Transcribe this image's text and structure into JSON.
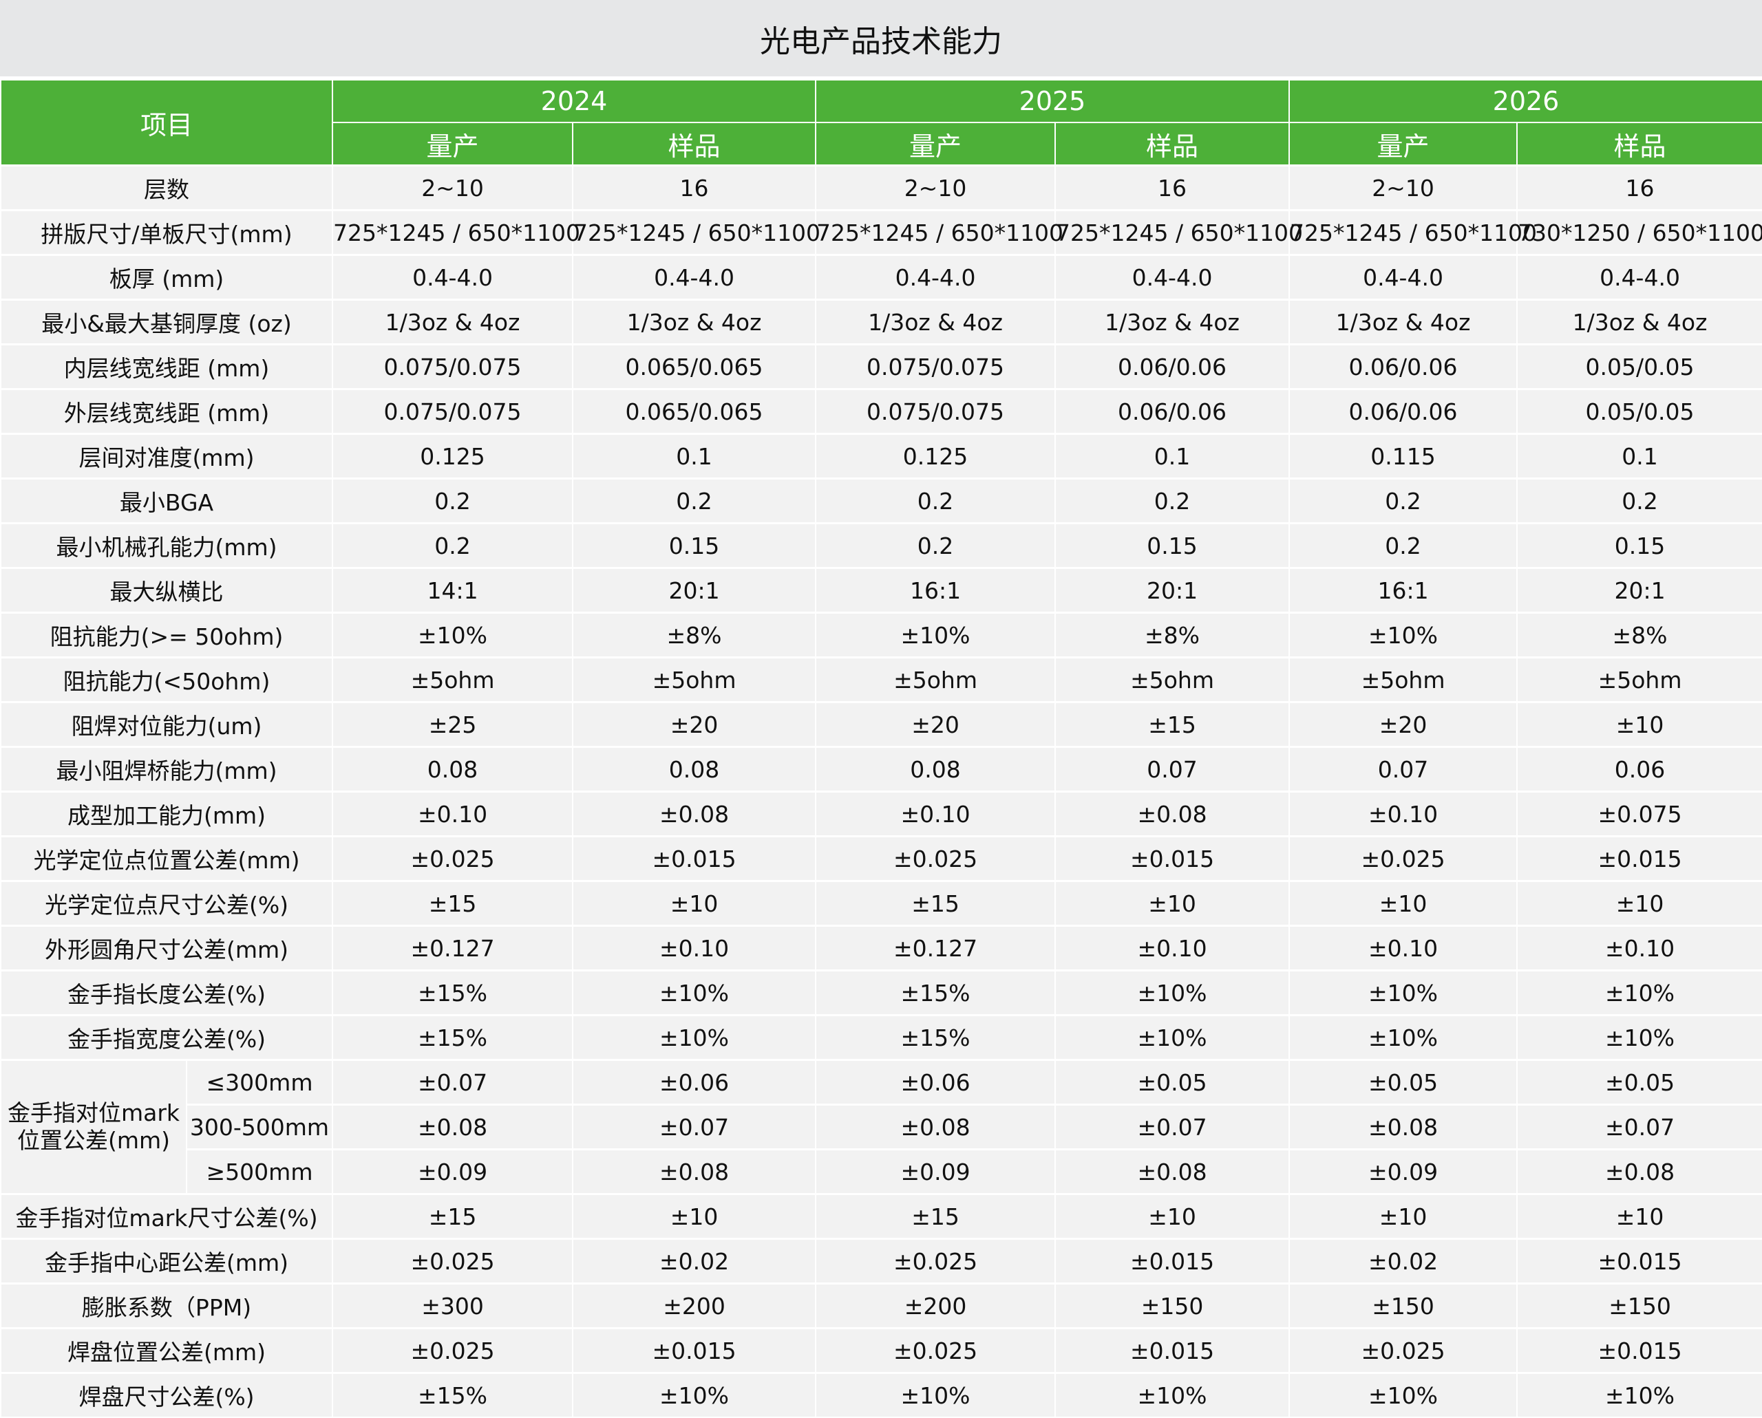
{
  "title": "光电产品技术能力",
  "header": {
    "item": "项目",
    "years": [
      "2024",
      "2025",
      "2026"
    ],
    "sub": [
      "量产",
      "样品",
      "量产",
      "样品",
      "量产",
      "样品"
    ]
  },
  "rows": [
    {
      "label": "层数",
      "values": [
        "2~10",
        "16",
        "2~10",
        "16",
        "2~10",
        "16"
      ]
    },
    {
      "label": "拼版尺寸/单板尺寸(mm)",
      "values": [
        "725*1245 / 650*1100",
        "725*1245 / 650*1100",
        "725*1245 / 650*1100",
        "725*1245 / 650*1100",
        "725*1245 / 650*1100",
        "730*1250 / 650*1100"
      ]
    },
    {
      "label": "板厚 (mm)",
      "values": [
        "0.4-4.0",
        "0.4-4.0",
        "0.4-4.0",
        "0.4-4.0",
        "0.4-4.0",
        "0.4-4.0"
      ]
    },
    {
      "label": "最小&最大基铜厚度 (oz)",
      "values": [
        "1/3oz & 4oz",
        "1/3oz & 4oz",
        "1/3oz & 4oz",
        "1/3oz & 4oz",
        "1/3oz & 4oz",
        "1/3oz & 4oz"
      ]
    },
    {
      "label": "内层线宽线距 (mm)",
      "values": [
        "0.075/0.075",
        "0.065/0.065",
        "0.075/0.075",
        "0.06/0.06",
        "0.06/0.06",
        "0.05/0.05"
      ]
    },
    {
      "label": "外层线宽线距 (mm)",
      "values": [
        "0.075/0.075",
        "0.065/0.065",
        "0.075/0.075",
        "0.06/0.06",
        "0.06/0.06",
        "0.05/0.05"
      ]
    },
    {
      "label": "层间对准度(mm)",
      "values": [
        "0.125",
        "0.1",
        "0.125",
        "0.1",
        "0.115",
        "0.1"
      ]
    },
    {
      "label": "最小BGA",
      "values": [
        "0.2",
        "0.2",
        "0.2",
        "0.2",
        "0.2",
        "0.2"
      ]
    },
    {
      "label": "最小机械孔能力(mm)",
      "values": [
        "0.2",
        "0.15",
        "0.2",
        "0.15",
        "0.2",
        "0.15"
      ]
    },
    {
      "label": "最大纵横比",
      "values": [
        "14:1",
        "20:1",
        "16:1",
        "20:1",
        "16:1",
        "20:1"
      ]
    },
    {
      "label": "阻抗能力(>= 50ohm)",
      "values": [
        "±10%",
        "±8%",
        "±10%",
        "±8%",
        "±10%",
        "±8%"
      ]
    },
    {
      "label": "阻抗能力(<50ohm)",
      "values": [
        "±5ohm",
        "±5ohm",
        "±5ohm",
        "±5ohm",
        "±5ohm",
        "±5ohm"
      ]
    },
    {
      "label": "阻焊对位能力(um)",
      "values": [
        "±25",
        "±20",
        "±20",
        "±15",
        "±20",
        "±10"
      ]
    },
    {
      "label": "最小阻焊桥能力(mm)",
      "values": [
        "0.08",
        "0.08",
        "0.08",
        "0.07",
        "0.07",
        "0.06"
      ]
    },
    {
      "label": "成型加工能力(mm)",
      "values": [
        "±0.10",
        "±0.08",
        "±0.10",
        "±0.08",
        "±0.10",
        "±0.075"
      ]
    },
    {
      "label": "光学定位点位置公差(mm)",
      "values": [
        "±0.025",
        "±0.015",
        "±0.025",
        "±0.015",
        "±0.025",
        "±0.015"
      ]
    },
    {
      "label": "光学定位点尺寸公差(%)",
      "values": [
        "±15",
        "±10",
        "±15",
        "±10",
        "±10",
        "±10"
      ]
    },
    {
      "label": "外形圆角尺寸公差(mm)",
      "values": [
        "±0.127",
        "±0.10",
        "±0.127",
        "±0.10",
        "±0.10",
        "±0.10"
      ]
    },
    {
      "label": "金手指长度公差(%)",
      "values": [
        "±15%",
        "±10%",
        "±15%",
        "±10%",
        "±10%",
        "±10%"
      ]
    },
    {
      "label": "金手指宽度公差(%)",
      "values": [
        "±15%",
        "±10%",
        "±15%",
        "±10%",
        "±10%",
        "±10%"
      ]
    }
  ],
  "group": {
    "label": "金手指对位mark位置公差(mm)",
    "rows": [
      {
        "label": "≤300mm",
        "values": [
          "±0.07",
          "±0.06",
          "±0.06",
          "±0.05",
          "±0.05",
          "±0.05"
        ]
      },
      {
        "label": "300-500mm",
        "values": [
          "±0.08",
          "±0.07",
          "±0.08",
          "±0.07",
          "±0.08",
          "±0.07"
        ]
      },
      {
        "label": "≥500mm",
        "values": [
          "±0.09",
          "±0.08",
          "±0.09",
          "±0.08",
          "±0.09",
          "±0.08"
        ]
      }
    ]
  },
  "rows_after": [
    {
      "label": "金手指对位mark尺寸公差(%)",
      "values": [
        "±15",
        "±10",
        "±15",
        "±10",
        "±10",
        "±10"
      ]
    },
    {
      "label": "金手指中心距公差(mm)",
      "values": [
        "±0.025",
        "±0.02",
        "±0.025",
        "±0.015",
        "±0.02",
        "±0.015"
      ]
    },
    {
      "label": "膨胀系数（PPM)",
      "values": [
        "±300",
        "±200",
        "±200",
        "±150",
        "±150",
        "±150"
      ]
    },
    {
      "label": "焊盘位置公差(mm)",
      "values": [
        "±0.025",
        "±0.015",
        "±0.025",
        "±0.015",
        "±0.025",
        "±0.015"
      ]
    },
    {
      "label": "焊盘尺寸公差(%)",
      "values": [
        "±15%",
        "±10%",
        "±10%",
        "±10%",
        "±10%",
        "±10%"
      ]
    }
  ]
}
